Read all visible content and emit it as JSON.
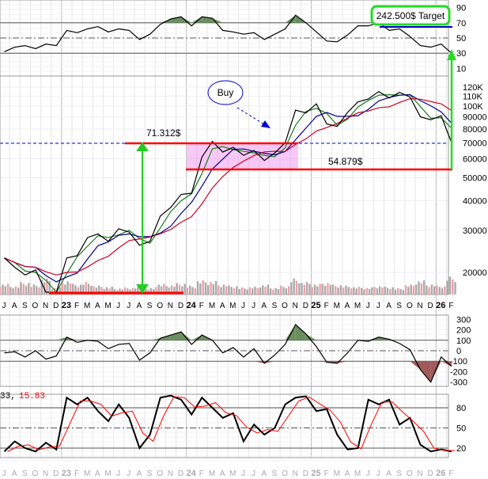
{
  "chart_data": {
    "type": "line",
    "title": "",
    "months": [
      "J",
      "A",
      "S",
      "O",
      "N",
      "D",
      "23",
      "F",
      "M",
      "A",
      "M",
      "J",
      "J",
      "A",
      "S",
      "O",
      "N",
      "D",
      "24",
      "F",
      "M",
      "A",
      "M",
      "J",
      "J",
      "A",
      "S",
      "O",
      "N",
      "D",
      "25",
      "F",
      "M",
      "A",
      "M",
      "J",
      "J",
      "A",
      "S",
      "O",
      "N",
      "D",
      "26",
      "F"
    ],
    "price": {
      "scale": "log",
      "ylim": [
        17000,
        130000
      ],
      "tick_labels": [
        "120K",
        "110K",
        "100K",
        "90000",
        "80000",
        "70000",
        "60000",
        "50000",
        "40000",
        "30000",
        "20000"
      ],
      "tick_values": [
        120000,
        110000,
        100000,
        90000,
        80000,
        70000,
        60000,
        50000,
        40000,
        30000,
        20000
      ],
      "close": [
        23000,
        21000,
        19500,
        20500,
        16500,
        16500,
        23000,
        23500,
        28000,
        29000,
        27000,
        30500,
        29500,
        26000,
        27000,
        34500,
        37500,
        42500,
        43000,
        61000,
        71000,
        64000,
        67000,
        62000,
        65000,
        59000,
        63500,
        70000,
        96000,
        93500,
        102000,
        84000,
        82000,
        94000,
        104000,
        107000,
        115000,
        108000,
        114000,
        109000,
        90000,
        87500,
        91000,
        70000
      ],
      "volume": [
        30,
        25,
        35,
        28,
        45,
        20,
        40,
        30,
        35,
        25,
        22,
        18,
        20,
        22,
        18,
        30,
        28,
        32,
        25,
        40,
        38,
        30,
        25,
        20,
        22,
        28,
        20,
        25,
        45,
        35,
        30,
        35,
        28,
        25,
        22,
        20,
        25,
        22,
        18,
        28,
        40,
        30,
        25,
        50
      ],
      "ma_windows": [
        2,
        4,
        7
      ],
      "ma_colors": [
        "#1a7a1a",
        "#00008b",
        "#cc0022"
      ],
      "price_color": "#b0002a",
      "dashed_level": 70000
    },
    "rsi": {
      "ylim": [
        0,
        100
      ],
      "tick_labels": [
        "90",
        "70",
        "50",
        "30",
        "10"
      ],
      "values": [
        32,
        38,
        40,
        36,
        42,
        40,
        60,
        57,
        62,
        65,
        58,
        62,
        60,
        48,
        55,
        68,
        75,
        78,
        66,
        78,
        76,
        60,
        58,
        55,
        57,
        48,
        55,
        62,
        80,
        70,
        58,
        46,
        45,
        54,
        66,
        66,
        70,
        60,
        62,
        52,
        40,
        38,
        42,
        30
      ]
    },
    "cci": {
      "ylim": [
        -340,
        340
      ],
      "tick_labels": [
        "300",
        "200",
        "100",
        "0",
        "-100",
        "-200",
        "-300"
      ],
      "values": [
        -20,
        -10,
        -60,
        0,
        -80,
        -50,
        130,
        80,
        100,
        90,
        20,
        60,
        70,
        -90,
        -20,
        120,
        150,
        180,
        60,
        150,
        100,
        -20,
        30,
        -60,
        20,
        -120,
        -40,
        60,
        250,
        160,
        40,
        -110,
        -120,
        -20,
        100,
        90,
        130,
        110,
        70,
        10,
        -180,
        -300,
        -60,
        -150
      ]
    },
    "stoch": {
      "ylim": [
        10,
        100
      ],
      "tick_labels": [
        "80",
        "50",
        "20"
      ],
      "legend_k": "33,",
      "legend_d": "15.83",
      "k": [
        15,
        30,
        20,
        15,
        28,
        18,
        95,
        85,
        95,
        75,
        60,
        85,
        65,
        20,
        40,
        95,
        98,
        92,
        70,
        95,
        80,
        65,
        72,
        30,
        55,
        40,
        50,
        85,
        95,
        97,
        75,
        78,
        40,
        18,
        20,
        92,
        85,
        92,
        55,
        65,
        25,
        15,
        18,
        15
      ]
    }
  },
  "annotations": {
    "resistance": "71.312$",
    "support": "54.879$",
    "buy": "Buy",
    "target": "242.500$ Target",
    "colors": {
      "green": "#22dd22",
      "red": "#ff0000",
      "pink": "#ee88ee",
      "blue": "#0000cc"
    }
  }
}
